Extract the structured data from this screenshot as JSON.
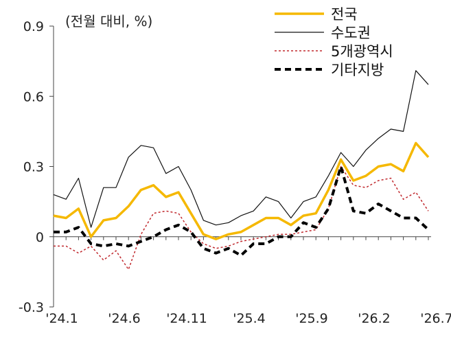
{
  "chart_data": {
    "type": "line",
    "unit_label": "(전월 대비, %)",
    "ylim": [
      -0.3,
      0.9
    ],
    "y_ticks": [
      "0.9",
      "0.6",
      "0.3",
      "0",
      "-0.3"
    ],
    "x_tick_labels": [
      "'24.1",
      "'24.6",
      "'24.11",
      "'25.4",
      "'25.9",
      "'26.2",
      "'26.7"
    ],
    "x": [
      "24.1",
      "24.2",
      "24.3",
      "24.4",
      "24.5",
      "24.6",
      "24.7",
      "24.8",
      "24.9",
      "24.10",
      "24.11",
      "24.12",
      "25.1",
      "25.2",
      "25.3",
      "25.4",
      "25.5",
      "25.6",
      "25.7",
      "25.8",
      "25.9",
      "25.10",
      "25.11",
      "25.12",
      "26.1",
      "26.2",
      "26.3",
      "26.4",
      "26.5",
      "26.6",
      "26.7"
    ],
    "grid": false,
    "legend_position": "top-right",
    "series": [
      {
        "name": "전국",
        "color": "#F5B800",
        "style": "solid-thick",
        "values": [
          0.09,
          0.08,
          0.12,
          0.0,
          0.07,
          0.08,
          0.13,
          0.2,
          0.22,
          0.17,
          0.19,
          0.1,
          0.01,
          -0.01,
          0.01,
          0.02,
          0.05,
          0.08,
          0.08,
          0.05,
          0.09,
          0.1,
          0.2,
          0.33,
          0.24,
          0.26,
          0.3,
          0.31,
          0.28,
          0.4,
          0.34
        ]
      },
      {
        "name": "수도권",
        "color": "#111111",
        "style": "solid-thin",
        "values": [
          0.18,
          0.16,
          0.25,
          0.04,
          0.21,
          0.21,
          0.34,
          0.39,
          0.38,
          0.27,
          0.3,
          0.2,
          0.07,
          0.05,
          0.06,
          0.09,
          0.11,
          0.17,
          0.15,
          0.08,
          0.15,
          0.17,
          0.26,
          0.36,
          0.3,
          0.37,
          0.42,
          0.46,
          0.45,
          0.71,
          0.65
        ]
      },
      {
        "name": "5개광역시",
        "color": "#C0282D",
        "style": "dotted",
        "values": [
          -0.04,
          -0.04,
          -0.07,
          -0.04,
          -0.1,
          -0.06,
          -0.14,
          0.01,
          0.1,
          0.11,
          0.1,
          0.02,
          -0.03,
          -0.05,
          -0.04,
          -0.02,
          -0.01,
          0.0,
          0.01,
          0.01,
          0.02,
          0.03,
          0.12,
          0.3,
          0.22,
          0.21,
          0.24,
          0.25,
          0.16,
          0.19,
          0.11
        ]
      },
      {
        "name": "기타지방",
        "color": "#000000",
        "style": "dashed-thick",
        "values": [
          0.02,
          0.02,
          0.04,
          -0.03,
          -0.04,
          -0.03,
          -0.04,
          -0.02,
          0.0,
          0.03,
          0.05,
          0.02,
          -0.05,
          -0.07,
          -0.05,
          -0.08,
          -0.03,
          -0.03,
          0.0,
          0.0,
          0.06,
          0.04,
          0.12,
          0.3,
          0.11,
          0.1,
          0.14,
          0.11,
          0.08,
          0.08,
          0.03
        ]
      }
    ]
  }
}
